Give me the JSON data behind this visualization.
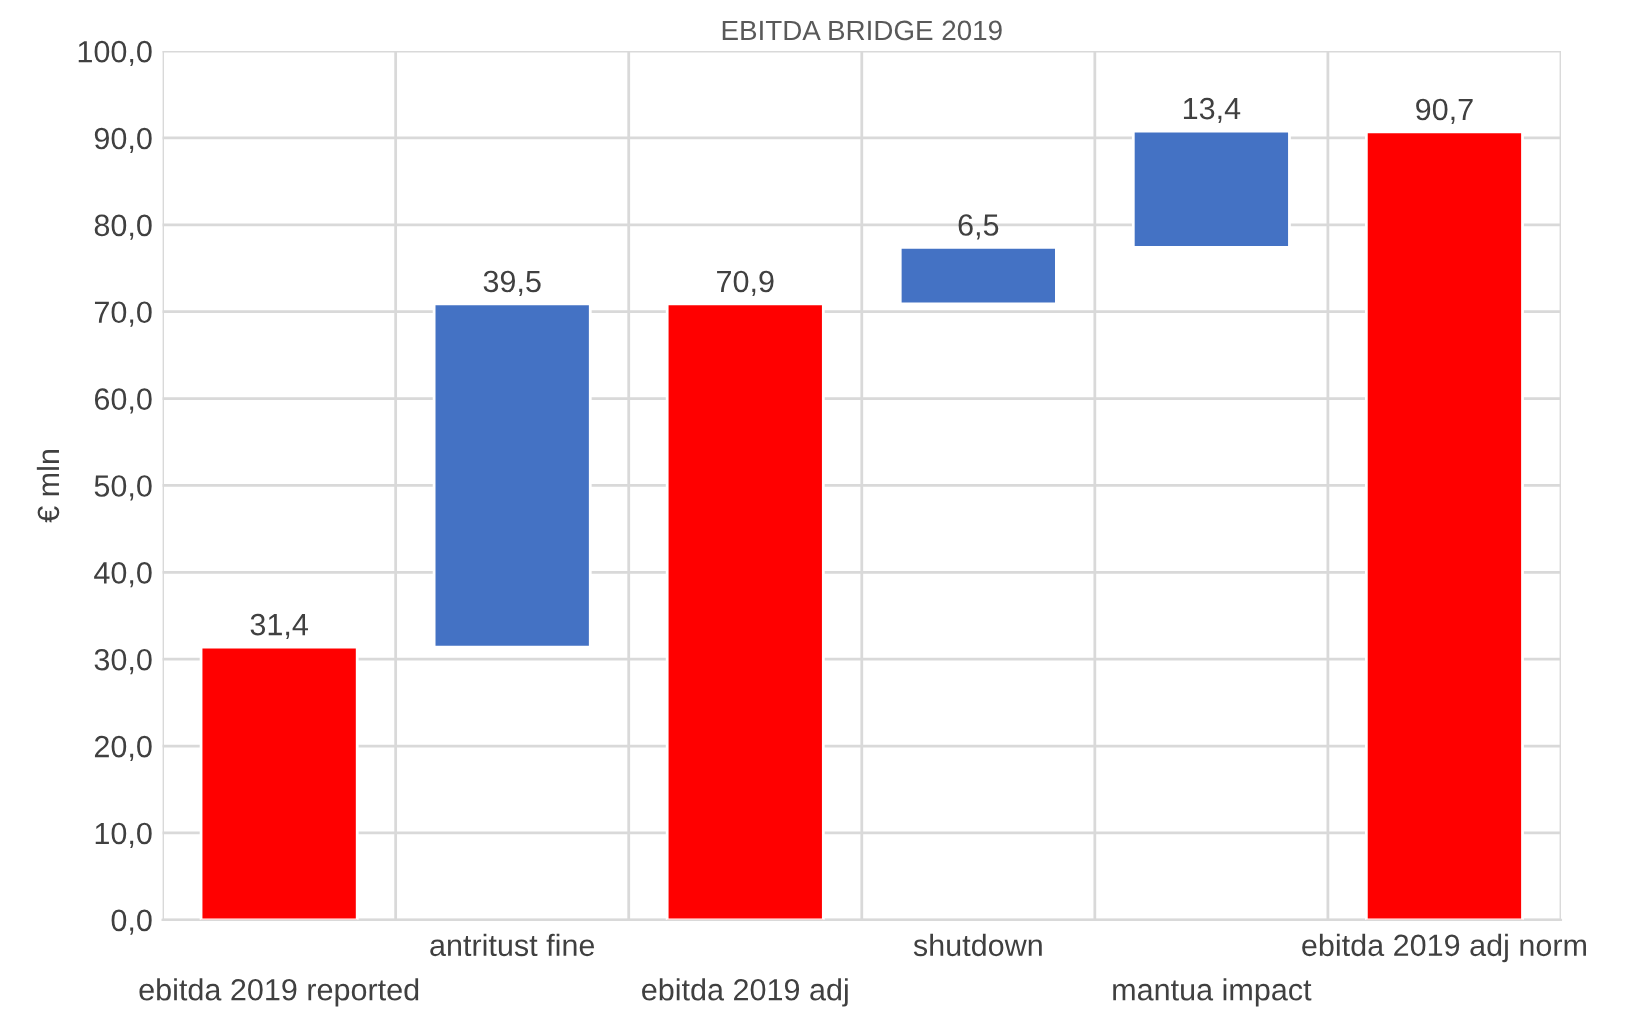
{
  "chart_data": {
    "type": "bar",
    "title": "EBITDA BRIDGE 2019",
    "ylabel": "€ mln",
    "categories": [
      "ebitda 2019 reported",
      "antritust fine",
      "ebitda 2019 adj",
      "shutdown",
      "mantua impact",
      "ebitda 2019 adj norm"
    ],
    "values": [
      31.4,
      39.5,
      70.9,
      6.5,
      13.4,
      90.7
    ],
    "base": [
      0,
      31.4,
      0,
      70.9,
      77.4,
      0
    ],
    "colors": [
      "#ff0000",
      "#4472c4",
      "#ff0000",
      "#4472c4",
      "#4472c4",
      "#ff0000"
    ],
    "value_labels": [
      "31,4",
      "39,5",
      "70,9",
      "6,5",
      "13,4",
      "90,7"
    ],
    "ylim": [
      0,
      100
    ],
    "yticks": [
      {
        "value": 0,
        "label": "0,0"
      },
      {
        "value": 10,
        "label": "10,0"
      },
      {
        "value": 20,
        "label": "20,0"
      },
      {
        "value": 30,
        "label": "30,0"
      },
      {
        "value": 40,
        "label": "40,0"
      },
      {
        "value": 50,
        "label": "50,0"
      },
      {
        "value": 60,
        "label": "60,0"
      },
      {
        "value": 70,
        "label": "70,0"
      },
      {
        "value": 80,
        "label": "80,0"
      },
      {
        "value": 90,
        "label": "90,0"
      },
      {
        "value": 100,
        "label": "100,0"
      }
    ],
    "grid": true
  }
}
